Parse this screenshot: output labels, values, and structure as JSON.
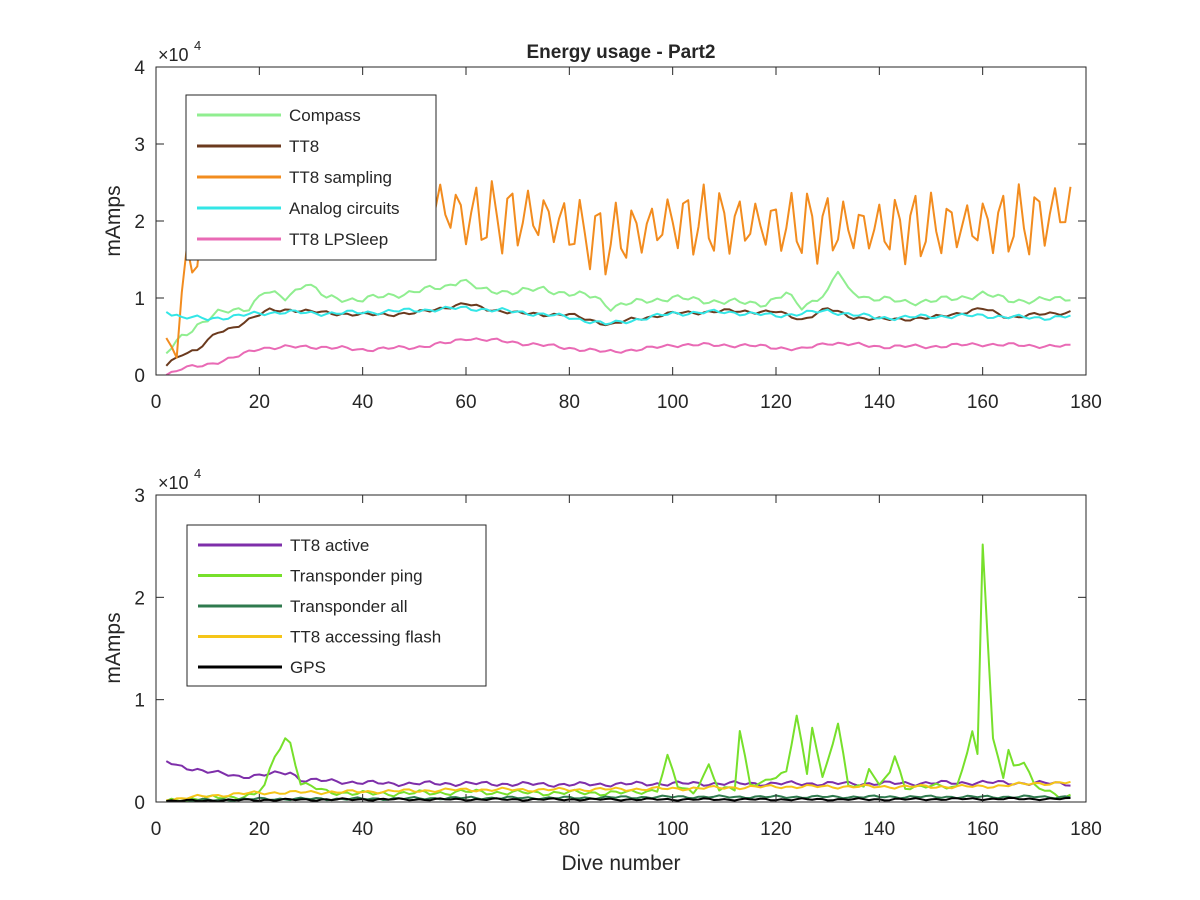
{
  "figure": {
    "xlabel": "Dive number"
  },
  "chart_data": [
    {
      "type": "line",
      "title": "Energy usage - Part2",
      "xlabel": "",
      "ylabel": "mAmps",
      "y_exponent_label": "×10",
      "y_exponent": "4",
      "xlim": [
        0,
        180
      ],
      "ylim": [
        0,
        40000
      ],
      "xticks": [
        "0",
        "20",
        "40",
        "60",
        "80",
        "100",
        "120",
        "140",
        "160",
        "180"
      ],
      "yticks": [
        "0",
        "1",
        "2",
        "3",
        "4"
      ],
      "grid": false,
      "legend_position": "top-left",
      "x_range": [
        2,
        177
      ],
      "series": [
        {
          "name": "Compass",
          "color": "#90EE90",
          "anchors": [
            [
              2,
              2800
            ],
            [
              5,
              5000
            ],
            [
              8,
              6500
            ],
            [
              12,
              8000
            ],
            [
              18,
              8800
            ],
            [
              21,
              10800
            ],
            [
              25,
              10000
            ],
            [
              29,
              12000
            ],
            [
              33,
              10000
            ],
            [
              40,
              9800
            ],
            [
              50,
              10800
            ],
            [
              56,
              11500
            ],
            [
              59,
              12400
            ],
            [
              63,
              11000
            ],
            [
              70,
              10800
            ],
            [
              75,
              11200
            ],
            [
              80,
              10500
            ],
            [
              85,
              10200
            ],
            [
              88,
              8800
            ],
            [
              95,
              9700
            ],
            [
              100,
              10000
            ],
            [
              110,
              9500
            ],
            [
              118,
              9300
            ],
            [
              122,
              10500
            ],
            [
              125,
              8800
            ],
            [
              130,
              10800
            ],
            [
              132,
              13500
            ],
            [
              134,
              11000
            ],
            [
              138,
              10000
            ],
            [
              145,
              9500
            ],
            [
              150,
              9600
            ],
            [
              155,
              10000
            ],
            [
              160,
              10500
            ],
            [
              165,
              9800
            ],
            [
              170,
              9600
            ],
            [
              177,
              10100
            ]
          ],
          "amp": 500
        },
        {
          "name": "TT8",
          "color": "#6B3A1E",
          "anchors": [
            [
              2,
              1200
            ],
            [
              5,
              2800
            ],
            [
              8,
              3300
            ],
            [
              12,
              5500
            ],
            [
              15,
              6200
            ],
            [
              18,
              7200
            ],
            [
              22,
              8400
            ],
            [
              26,
              8500
            ],
            [
              30,
              8200
            ],
            [
              40,
              7800
            ],
            [
              50,
              8000
            ],
            [
              56,
              8800
            ],
            [
              60,
              9200
            ],
            [
              64,
              8600
            ],
            [
              70,
              8000
            ],
            [
              80,
              7800
            ],
            [
              85,
              7000
            ],
            [
              88,
              6500
            ],
            [
              92,
              7200
            ],
            [
              100,
              8000
            ],
            [
              110,
              8300
            ],
            [
              120,
              8200
            ],
            [
              125,
              7200
            ],
            [
              130,
              8600
            ],
            [
              135,
              7500
            ],
            [
              140,
              7200
            ],
            [
              150,
              7400
            ],
            [
              160,
              8600
            ],
            [
              165,
              7500
            ],
            [
              170,
              7800
            ],
            [
              177,
              8200
            ]
          ],
          "amp": 300
        },
        {
          "name": "TT8 sampling",
          "color": "#F28C1F",
          "anchors": [
            [
              2,
              4800
            ],
            [
              4,
              6500
            ],
            [
              6,
              15500
            ],
            [
              8,
              14500
            ],
            [
              10,
              18500
            ],
            [
              15,
              21000
            ],
            [
              20,
              23000
            ],
            [
              30,
              22500
            ],
            [
              40,
              22000
            ],
            [
              55,
              22000
            ],
            [
              60,
              20500
            ],
            [
              75,
              20500
            ],
            [
              87,
              17500
            ],
            [
              100,
              20000
            ],
            [
              120,
              19500
            ],
            [
              140,
              19000
            ],
            [
              160,
              19500
            ],
            [
              170,
              20000
            ],
            [
              177,
              22000
            ]
          ],
          "amp": 4500
        },
        {
          "name": "Analog circuits",
          "color": "#33E6E6",
          "anchors": [
            [
              2,
              8200
            ],
            [
              5,
              7500
            ],
            [
              10,
              7300
            ],
            [
              15,
              7600
            ],
            [
              20,
              8000
            ],
            [
              25,
              8200
            ],
            [
              30,
              8000
            ],
            [
              40,
              8100
            ],
            [
              50,
              8400
            ],
            [
              60,
              8700
            ],
            [
              70,
              8200
            ],
            [
              80,
              7500
            ],
            [
              87,
              6600
            ],
            [
              95,
              7400
            ],
            [
              100,
              8000
            ],
            [
              110,
              8200
            ],
            [
              120,
              7700
            ],
            [
              130,
              8300
            ],
            [
              140,
              7400
            ],
            [
              150,
              7600
            ],
            [
              160,
              7700
            ],
            [
              170,
              7400
            ],
            [
              177,
              7600
            ]
          ],
          "amp": 350
        },
        {
          "name": "TT8 LPSleep",
          "color": "#E96AB5",
          "anchors": [
            [
              2,
              0
            ],
            [
              5,
              800
            ],
            [
              10,
              1400
            ],
            [
              15,
              2200
            ],
            [
              20,
              3500
            ],
            [
              30,
              3700
            ],
            [
              40,
              3300
            ],
            [
              50,
              3600
            ],
            [
              57,
              4200
            ],
            [
              60,
              4800
            ],
            [
              70,
              4200
            ],
            [
              80,
              3500
            ],
            [
              87,
              3000
            ],
            [
              95,
              3400
            ],
            [
              100,
              3900
            ],
            [
              110,
              3900
            ],
            [
              118,
              3700
            ],
            [
              125,
              3300
            ],
            [
              130,
              4200
            ],
            [
              140,
              3700
            ],
            [
              150,
              3700
            ],
            [
              160,
              4000
            ],
            [
              170,
              3800
            ],
            [
              177,
              3700
            ]
          ],
          "amp": 300
        }
      ]
    },
    {
      "type": "line",
      "title": "",
      "xlabel": "Dive number",
      "ylabel": "mAmps",
      "y_exponent_label": "×10",
      "y_exponent": "4",
      "xlim": [
        0,
        180
      ],
      "ylim": [
        0,
        30000
      ],
      "xticks": [
        "0",
        "20",
        "40",
        "60",
        "80",
        "100",
        "120",
        "140",
        "160",
        "180"
      ],
      "yticks": [
        "0",
        "1",
        "2",
        "3"
      ],
      "grid": false,
      "legend_position": "top-left",
      "x_range": [
        2,
        177
      ],
      "series": [
        {
          "name": "TT8 active",
          "color": "#7E2FAA",
          "anchors": [
            [
              2,
              4000
            ],
            [
              4,
              3500
            ],
            [
              8,
              3200
            ],
            [
              12,
              2800
            ],
            [
              16,
              2500
            ],
            [
              20,
              2600
            ],
            [
              24,
              2800
            ],
            [
              26,
              2900
            ],
            [
              28,
              2200
            ],
            [
              35,
              2000
            ],
            [
              45,
              1800
            ],
            [
              60,
              1800
            ],
            [
              80,
              1700
            ],
            [
              100,
              1800
            ],
            [
              120,
              1800
            ],
            [
              140,
              1800
            ],
            [
              160,
              1900
            ],
            [
              177,
              1800
            ]
          ],
          "amp": 250
        },
        {
          "name": "Transponder ping",
          "color": "#77E02B",
          "anchors": [
            [
              2,
              100
            ],
            [
              8,
              300
            ],
            [
              15,
              500
            ],
            [
              19,
              700
            ],
            [
              21,
              1500
            ],
            [
              23,
              4500
            ],
            [
              25,
              6200
            ],
            [
              26,
              5800
            ],
            [
              28,
              1800
            ],
            [
              33,
              1000
            ],
            [
              40,
              800
            ],
            [
              55,
              900
            ],
            [
              60,
              1000
            ],
            [
              70,
              900
            ],
            [
              80,
              900
            ],
            [
              92,
              900
            ],
            [
              97,
              1200
            ],
            [
              99,
              4400
            ],
            [
              101,
              1500
            ],
            [
              104,
              900
            ],
            [
              107,
              3600
            ],
            [
              109,
              1200
            ],
            [
              112,
              1200
            ],
            [
              113,
              7000
            ],
            [
              115,
              1800
            ],
            [
              118,
              2000
            ],
            [
              122,
              2800
            ],
            [
              124,
              8600
            ],
            [
              126,
              2800
            ],
            [
              127,
              7500
            ],
            [
              129,
              2200
            ],
            [
              132,
              7500
            ],
            [
              134,
              1800
            ],
            [
              137,
              1500
            ],
            [
              138,
              3400
            ],
            [
              140,
              1400
            ],
            [
              142,
              3000
            ],
            [
              143,
              4400
            ],
            [
              145,
              1500
            ],
            [
              155,
              1500
            ],
            [
              158,
              6800
            ],
            [
              159,
              4500
            ],
            [
              160,
              25200
            ],
            [
              162,
              6000
            ],
            [
              164,
              2600
            ],
            [
              165,
              5200
            ],
            [
              166,
              3500
            ],
            [
              168,
              4000
            ],
            [
              170,
              1500
            ],
            [
              175,
              600
            ],
            [
              177,
              600
            ]
          ],
          "amp": 300
        },
        {
          "name": "Transponder all",
          "color": "#2F7A4E",
          "anchors": [
            [
              2,
              100
            ],
            [
              20,
              300
            ],
            [
              40,
              300
            ],
            [
              60,
              400
            ],
            [
              80,
              400
            ],
            [
              100,
              500
            ],
            [
              120,
              500
            ],
            [
              140,
              500
            ],
            [
              160,
              500
            ],
            [
              177,
              500
            ]
          ],
          "amp": 150
        },
        {
          "name": "TT8 accessing flash",
          "color": "#F5C518",
          "anchors": [
            [
              2,
              200
            ],
            [
              10,
              600
            ],
            [
              20,
              900
            ],
            [
              40,
              1000
            ],
            [
              60,
              1200
            ],
            [
              80,
              1200
            ],
            [
              100,
              1300
            ],
            [
              120,
              1500
            ],
            [
              140,
              1500
            ],
            [
              160,
              1500
            ],
            [
              170,
              1800
            ],
            [
              177,
              1900
            ]
          ],
          "amp": 200
        },
        {
          "name": "GPS",
          "color": "#000000",
          "anchors": [
            [
              2,
              100
            ],
            [
              20,
              200
            ],
            [
              40,
              250
            ],
            [
              60,
              250
            ],
            [
              80,
              250
            ],
            [
              100,
              250
            ],
            [
              120,
              250
            ],
            [
              140,
              250
            ],
            [
              160,
              300
            ],
            [
              177,
              300
            ]
          ],
          "amp": 120
        }
      ]
    }
  ]
}
